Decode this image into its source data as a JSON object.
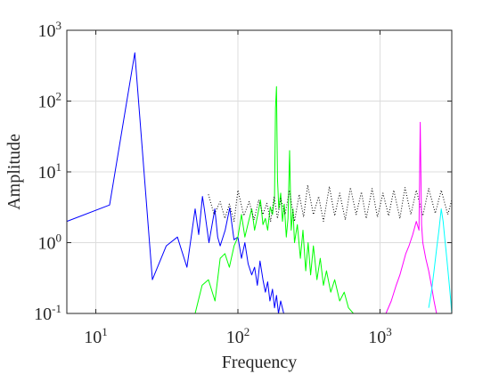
{
  "chart_data": {
    "type": "line",
    "title": "",
    "xlabel": "Frequency",
    "ylabel": "Amplitude",
    "xscale": "log",
    "yscale": "log",
    "xlim": [
      6.25,
      3200
    ],
    "ylim": [
      0.1,
      1000
    ],
    "grid": true,
    "legend": null,
    "x_ticks": [
      {
        "value": 10,
        "base": "10",
        "exp": "1"
      },
      {
        "value": 100,
        "base": "10",
        "exp": "2"
      },
      {
        "value": 1000,
        "base": "10",
        "exp": "3"
      }
    ],
    "y_ticks": [
      {
        "value": 0.1,
        "base": "10",
        "exp": "-1"
      },
      {
        "value": 1,
        "base": "10",
        "exp": "0"
      },
      {
        "value": 10,
        "base": "10",
        "exp": "1"
      },
      {
        "value": 100,
        "base": "10",
        "exp": "2"
      },
      {
        "value": 1000,
        "base": "10",
        "exp": "3"
      }
    ],
    "series": [
      {
        "color": "#0000ff",
        "style": "solid",
        "points": [
          [
            6.25,
            2.0
          ],
          [
            12.5,
            3.4
          ],
          [
            18.8,
            480
          ],
          [
            25,
            0.3
          ],
          [
            31.3,
            0.9
          ],
          [
            37.5,
            1.2
          ],
          [
            43.8,
            0.45
          ],
          [
            50,
            3.0
          ],
          [
            53,
            1.3
          ],
          [
            56.3,
            4.5
          ],
          [
            58,
            3.0
          ],
          [
            62.5,
            1.0
          ],
          [
            68.8,
            3.0
          ],
          [
            72,
            1.2
          ],
          [
            75,
            0.9
          ],
          [
            81.3,
            1.5
          ],
          [
            87.5,
            3.1
          ],
          [
            93.8,
            1.1
          ],
          [
            100,
            1.2
          ],
          [
            106,
            0.6
          ],
          [
            112,
            1.0
          ],
          [
            118,
            0.5
          ],
          [
            125,
            0.35
          ],
          [
            131,
            0.45
          ],
          [
            137,
            0.25
          ],
          [
            143,
            0.55
          ],
          [
            150,
            0.3
          ],
          [
            156,
            0.2
          ],
          [
            162,
            0.28
          ],
          [
            168,
            0.15
          ],
          [
            175,
            0.22
          ],
          [
            181,
            0.12
          ],
          [
            187,
            0.18
          ],
          [
            193,
            0.1
          ],
          [
            200,
            0.15
          ],
          [
            210,
            0.1
          ]
        ]
      },
      {
        "color": "#00ff00",
        "style": "solid",
        "points": [
          [
            50,
            0.1
          ],
          [
            56,
            0.25
          ],
          [
            62,
            0.3
          ],
          [
            69,
            0.15
          ],
          [
            75,
            0.6
          ],
          [
            81,
            0.7
          ],
          [
            87,
            0.45
          ],
          [
            94,
            0.9
          ],
          [
            100,
            1.2
          ],
          [
            106,
            2.5
          ],
          [
            112,
            1.2
          ],
          [
            119,
            2.0
          ],
          [
            125,
            3.0
          ],
          [
            131,
            1.5
          ],
          [
            138,
            2.5
          ],
          [
            144,
            4.0
          ],
          [
            150,
            1.8
          ],
          [
            156,
            2.2
          ],
          [
            162,
            1.5
          ],
          [
            169,
            3.2
          ],
          [
            175,
            2.5
          ],
          [
            181,
            4.5
          ],
          [
            184,
            80
          ],
          [
            187,
            160
          ],
          [
            190,
            8
          ],
          [
            194,
            3.0
          ],
          [
            200,
            5.0
          ],
          [
            206,
            2.0
          ],
          [
            212,
            3.5
          ],
          [
            219,
            1.2
          ],
          [
            225,
            2.2
          ],
          [
            231,
            20
          ],
          [
            237,
            1.5
          ],
          [
            244,
            3.0
          ],
          [
            250,
            1.0
          ],
          [
            262,
            1.8
          ],
          [
            275,
            0.6
          ],
          [
            287,
            1.5
          ],
          [
            300,
            0.4
          ],
          [
            312,
            1.0
          ],
          [
            325,
            0.35
          ],
          [
            340,
            0.9
          ],
          [
            360,
            0.3
          ],
          [
            380,
            0.6
          ],
          [
            400,
            0.25
          ],
          [
            420,
            0.4
          ],
          [
            450,
            0.2
          ],
          [
            480,
            0.3
          ],
          [
            520,
            0.15
          ],
          [
            560,
            0.2
          ],
          [
            600,
            0.12
          ],
          [
            650,
            0.1
          ]
        ]
      },
      {
        "color": "#000000",
        "style": "dotted",
        "points": [
          [
            62,
            4.8
          ],
          [
            68,
            2.5
          ],
          [
            75,
            3.8
          ],
          [
            81,
            2.2
          ],
          [
            87,
            3.5
          ],
          [
            94,
            2.0
          ],
          [
            100,
            5.5
          ],
          [
            110,
            2.4
          ],
          [
            120,
            3.8
          ],
          [
            130,
            2.1
          ],
          [
            140,
            4.0
          ],
          [
            150,
            2.5
          ],
          [
            160,
            3.6
          ],
          [
            170,
            2.0
          ],
          [
            180,
            4.5
          ],
          [
            190,
            2.2
          ],
          [
            200,
            4.2
          ],
          [
            215,
            2.5
          ],
          [
            230,
            5.5
          ],
          [
            250,
            2.0
          ],
          [
            270,
            4.8
          ],
          [
            290,
            2.3
          ],
          [
            310,
            6.5
          ],
          [
            340,
            2.5
          ],
          [
            370,
            4.5
          ],
          [
            400,
            2.0
          ],
          [
            440,
            6.2
          ],
          [
            480,
            2.4
          ],
          [
            520,
            5.0
          ],
          [
            570,
            2.1
          ],
          [
            620,
            6.0
          ],
          [
            680,
            2.5
          ],
          [
            740,
            5.2
          ],
          [
            800,
            2.2
          ],
          [
            880,
            5.8
          ],
          [
            960,
            2.3
          ],
          [
            1050,
            5.0
          ],
          [
            1150,
            2.4
          ],
          [
            1250,
            5.5
          ],
          [
            1380,
            2.2
          ],
          [
            1500,
            6.0
          ],
          [
            1650,
            2.5
          ],
          [
            1800,
            5.5
          ],
          [
            2000,
            2.4
          ],
          [
            2200,
            5.8
          ],
          [
            2450,
            2.6
          ],
          [
            2700,
            5.5
          ],
          [
            3000,
            2.5
          ],
          [
            3200,
            4.0
          ]
        ]
      },
      {
        "color": "#ff00ff",
        "style": "solid",
        "points": [
          [
            1100,
            0.1
          ],
          [
            1200,
            0.15
          ],
          [
            1300,
            0.25
          ],
          [
            1380,
            0.35
          ],
          [
            1450,
            0.5
          ],
          [
            1520,
            0.7
          ],
          [
            1600,
            0.9
          ],
          [
            1700,
            1.3
          ],
          [
            1800,
            2.0
          ],
          [
            1880,
            1.5
          ],
          [
            1920,
            50
          ],
          [
            1960,
            1.8
          ],
          [
            2000,
            1.0
          ],
          [
            2100,
            0.6
          ],
          [
            2200,
            0.4
          ],
          [
            2300,
            0.25
          ],
          [
            2400,
            0.15
          ],
          [
            2500,
            0.1
          ]
        ]
      },
      {
        "color": "#00ffff",
        "style": "solid",
        "points": [
          [
            2200,
            0.12
          ],
          [
            2300,
            0.2
          ],
          [
            2400,
            0.4
          ],
          [
            2500,
            0.8
          ],
          [
            2600,
            1.5
          ],
          [
            2700,
            3.0
          ],
          [
            2780,
            2.0
          ],
          [
            2850,
            1.2
          ],
          [
            2950,
            0.6
          ],
          [
            3050,
            0.3
          ],
          [
            3150,
            0.15
          ],
          [
            3200,
            0.1
          ]
        ]
      }
    ]
  }
}
